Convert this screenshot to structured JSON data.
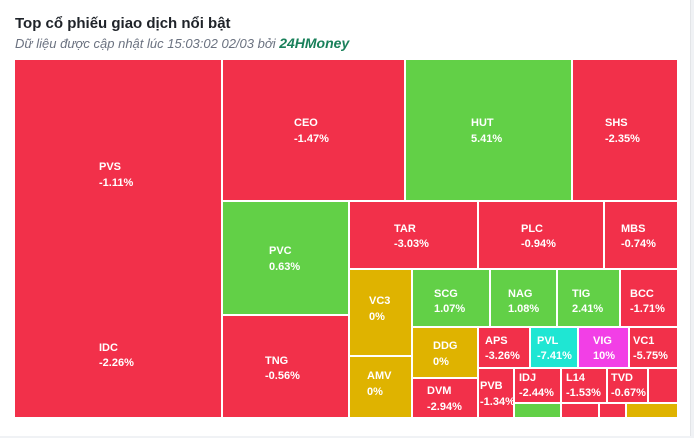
{
  "header": {
    "title": "Top cổ phiếu giao dịch nổi bật",
    "subtitle": "Dữ liệu được cập nhật lúc 15:03:02 02/03 bởi",
    "brand": "24HMoney"
  },
  "colors": {
    "up": "#62d047",
    "down": "#f2304a",
    "reference": "#dfb300",
    "ceiling": "#f23fe6",
    "floor": "#1fe6d3"
  },
  "tiles": [
    {
      "ticker": "PVS",
      "change": "-1.11%"
    },
    {
      "ticker": "IDC",
      "change": "-2.26%"
    },
    {
      "ticker": "CEO",
      "change": "-1.47%"
    },
    {
      "ticker": "HUT",
      "change": "5.41%"
    },
    {
      "ticker": "SHS",
      "change": "-2.35%"
    },
    {
      "ticker": "PVC",
      "change": "0.63%"
    },
    {
      "ticker": "TNG",
      "change": "-0.56%"
    },
    {
      "ticker": "TAR",
      "change": "-3.03%"
    },
    {
      "ticker": "PLC",
      "change": "-0.94%"
    },
    {
      "ticker": "MBS",
      "change": "-0.74%"
    },
    {
      "ticker": "VC3",
      "change": "0%"
    },
    {
      "ticker": "AMV",
      "change": "0%"
    },
    {
      "ticker": "SCG",
      "change": "1.07%"
    },
    {
      "ticker": "NAG",
      "change": "1.08%"
    },
    {
      "ticker": "TIG",
      "change": "2.41%"
    },
    {
      "ticker": "BCC",
      "change": "-1.71%"
    },
    {
      "ticker": "DDG",
      "change": "0%"
    },
    {
      "ticker": "APS",
      "change": "-3.26%"
    },
    {
      "ticker": "PVL",
      "change": "-7.41%"
    },
    {
      "ticker": "VIG",
      "change": "10%"
    },
    {
      "ticker": "VC1",
      "change": "-5.75%"
    },
    {
      "ticker": "DVM",
      "change": "-2.94%"
    },
    {
      "ticker": "PVB",
      "change": "-1.34%"
    },
    {
      "ticker": "IDJ",
      "change": "-2.44%"
    },
    {
      "ticker": "L14",
      "change": "-1.53%"
    },
    {
      "ticker": "TVD",
      "change": "-0.67%"
    }
  ]
}
